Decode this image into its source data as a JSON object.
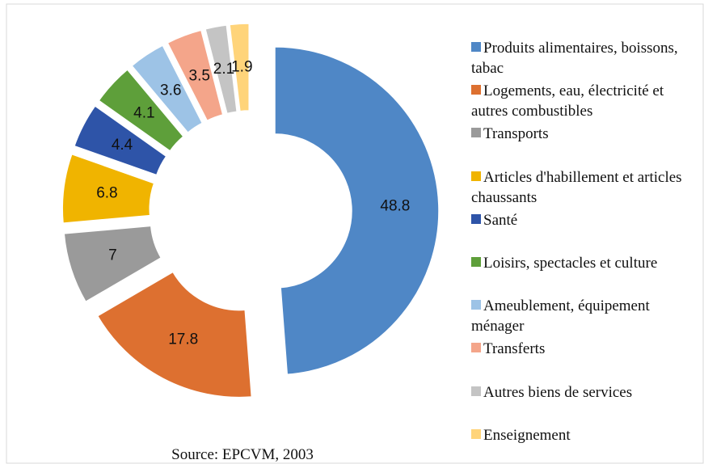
{
  "chart_data": {
    "type": "donut",
    "categories": [
      "Produits alimentaires, boissons, tabac",
      "Logements, eau, électricité et autres combustibles",
      "Transports",
      "Articles d'habillement et articles chaussants",
      "Santé",
      "Loisirs, spectacles et culture",
      "Ameublement, équipement ménager",
      "Transferts",
      "Autres biens de services",
      "Enseignement"
    ],
    "values": [
      48.8,
      17.8,
      7,
      6.8,
      4.4,
      4.1,
      3.6,
      3.5,
      2.1,
      1.9
    ],
    "colors": [
      "#4f87c6",
      "#dd7030",
      "#9a9a9a",
      "#f0b400",
      "#2e54a8",
      "#5e9f3a",
      "#9dc3e6",
      "#f4a58a",
      "#c4c4c4",
      "#ffd47a"
    ],
    "source": "Source: EPCVM, 2003",
    "legend": "right"
  }
}
